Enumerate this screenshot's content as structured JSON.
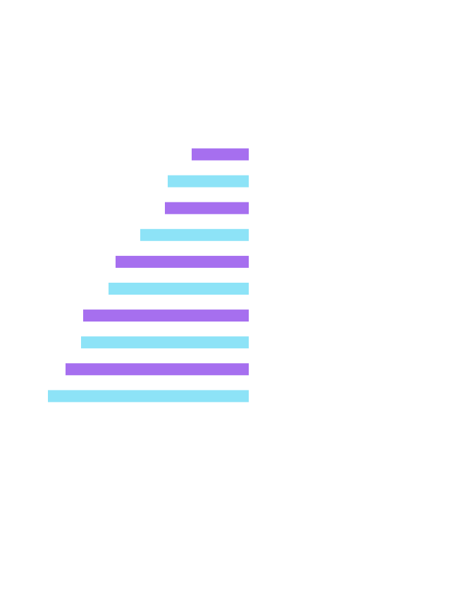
{
  "chart_data": {
    "type": "bar",
    "orientation": "horizontal",
    "alignment": "right",
    "title": "",
    "xlabel": "",
    "ylabel": "",
    "axes_visible": false,
    "grid": false,
    "legend": "none",
    "values": [
      81,
      115,
      119,
      154,
      189,
      199,
      235,
      238,
      260,
      285
    ],
    "bar_colors": [
      "#a66fef",
      "#8de3f7",
      "#a66fef",
      "#8de3f7",
      "#a66fef",
      "#8de3f7",
      "#a66fef",
      "#8de3f7",
      "#a66fef",
      "#8de3f7"
    ]
  }
}
